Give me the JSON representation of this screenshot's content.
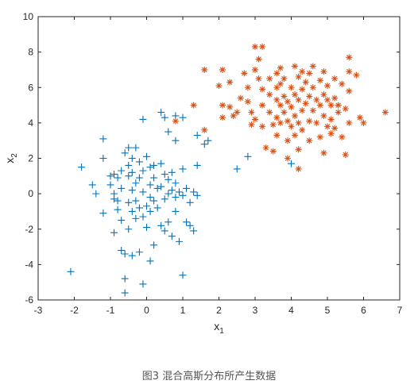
{
  "caption": "图3 混合高斯分布所产生数据",
  "colors": {
    "series1": "#0072BD",
    "series2": "#D95319",
    "axis": "#262626"
  },
  "chart_data": {
    "type": "scatter",
    "title": "",
    "xlabel": {
      "base": "x",
      "sub": "1"
    },
    "ylabel": {
      "base": "x",
      "sub": "2"
    },
    "xlim": [
      -3,
      7
    ],
    "ylim": [
      -6,
      10
    ],
    "xticks": [
      -3,
      -2,
      -1,
      0,
      1,
      2,
      3,
      4,
      5,
      6,
      7
    ],
    "yticks": [
      -6,
      -4,
      -2,
      0,
      2,
      4,
      6,
      8,
      10
    ],
    "grid": false,
    "box": true,
    "series": [
      {
        "marker": "plus",
        "color": "#0072BD",
        "points": [
          [
            -2.1,
            -4.4
          ],
          [
            -1.8,
            1.5
          ],
          [
            -1.5,
            0.5
          ],
          [
            -1.4,
            0.0
          ],
          [
            -1.2,
            3.1
          ],
          [
            -1.2,
            2.0
          ],
          [
            -1.2,
            -1.1
          ],
          [
            -1.0,
            1.0
          ],
          [
            -1.0,
            0.5
          ],
          [
            -0.9,
            1.1
          ],
          [
            -0.9,
            0.0
          ],
          [
            -0.9,
            -0.3
          ],
          [
            -0.9,
            -2.2
          ],
          [
            -0.8,
            -0.4
          ],
          [
            -0.8,
            0.9
          ],
          [
            -0.8,
            -0.9
          ],
          [
            -0.7,
            1.3
          ],
          [
            -0.7,
            0.3
          ],
          [
            -0.7,
            -1.5
          ],
          [
            -0.7,
            -3.2
          ],
          [
            -0.6,
            -5.6
          ],
          [
            -0.6,
            -4.8
          ],
          [
            -0.6,
            -3.4
          ],
          [
            -0.6,
            2.3
          ],
          [
            -0.5,
            2.6
          ],
          [
            -0.5,
            1.6
          ],
          [
            -0.5,
            1.0
          ],
          [
            -0.5,
            -0.5
          ],
          [
            -0.5,
            -2.0
          ],
          [
            -0.4,
            2.0
          ],
          [
            -0.4,
            1.2
          ],
          [
            -0.4,
            0.2
          ],
          [
            -0.4,
            -1.0
          ],
          [
            -0.4,
            -3.5
          ],
          [
            -0.3,
            2.6
          ],
          [
            -0.3,
            0.6
          ],
          [
            -0.3,
            -0.4
          ],
          [
            -0.3,
            -1.4
          ],
          [
            -0.2,
            1.8
          ],
          [
            -0.2,
            0.9
          ],
          [
            -0.2,
            -0.8
          ],
          [
            -0.2,
            -3.3
          ],
          [
            -0.1,
            4.2
          ],
          [
            -0.1,
            1.3
          ],
          [
            -0.1,
            0.1
          ],
          [
            -0.1,
            -1.3
          ],
          [
            -0.1,
            -5.1
          ],
          [
            0.0,
            2.1
          ],
          [
            0.0,
            -0.7
          ],
          [
            0.0,
            -1.9
          ],
          [
            0.1,
            1.5
          ],
          [
            0.1,
            0.5
          ],
          [
            0.1,
            -0.2
          ],
          [
            0.1,
            -1.0
          ],
          [
            0.1,
            -3.8
          ],
          [
            0.2,
            1.6
          ],
          [
            0.2,
            0.9
          ],
          [
            0.2,
            -0.4
          ],
          [
            0.2,
            -2.9
          ],
          [
            0.3,
            0.3
          ],
          [
            0.3,
            -0.8
          ],
          [
            0.4,
            4.6
          ],
          [
            0.4,
            1.7
          ],
          [
            0.4,
            0.4
          ],
          [
            0.4,
            -1.8
          ],
          [
            0.5,
            4.3
          ],
          [
            0.5,
            1.1
          ],
          [
            0.5,
            -0.3
          ],
          [
            0.5,
            -2.1
          ],
          [
            0.6,
            3.5
          ],
          [
            0.6,
            0.8
          ],
          [
            0.6,
            0.0
          ],
          [
            0.6,
            -1.6
          ],
          [
            0.7,
            1.2
          ],
          [
            0.7,
            0.2
          ],
          [
            0.7,
            -2.4
          ],
          [
            0.8,
            4.4
          ],
          [
            0.8,
            3.0
          ],
          [
            0.8,
            0.6
          ],
          [
            0.8,
            -0.2
          ],
          [
            0.8,
            -1.0
          ],
          [
            0.9,
            0.1
          ],
          [
            0.9,
            -2.7
          ],
          [
            1.0,
            4.3
          ],
          [
            1.0,
            1.4
          ],
          [
            1.0,
            -0.1
          ],
          [
            1.0,
            -4.6
          ],
          [
            1.1,
            0.3
          ],
          [
            1.1,
            -1.6
          ],
          [
            1.2,
            -0.5
          ],
          [
            1.2,
            -1.8
          ],
          [
            1.3,
            0.1
          ],
          [
            1.3,
            -2.1
          ],
          [
            1.4,
            3.3
          ],
          [
            1.4,
            1.6
          ],
          [
            1.4,
            -0.1
          ],
          [
            1.6,
            2.8
          ],
          [
            1.7,
            3.0
          ],
          [
            2.5,
            1.4
          ],
          [
            2.8,
            2.1
          ],
          [
            4.0,
            1.7
          ]
        ]
      },
      {
        "marker": "asterisk",
        "color": "#D95319",
        "points": [
          [
            0.8,
            4.1
          ],
          [
            1.3,
            5.0
          ],
          [
            1.6,
            3.6
          ],
          [
            1.6,
            7.0
          ],
          [
            2.0,
            6.1
          ],
          [
            2.1,
            7.0
          ],
          [
            2.1,
            5.0
          ],
          [
            2.1,
            4.3
          ],
          [
            2.3,
            4.9
          ],
          [
            2.3,
            6.3
          ],
          [
            2.4,
            4.4
          ],
          [
            2.5,
            4.6
          ],
          [
            2.6,
            5.4
          ],
          [
            2.7,
            6.8
          ],
          [
            2.8,
            6.0
          ],
          [
            2.8,
            5.2
          ],
          [
            2.9,
            3.9
          ],
          [
            2.9,
            4.6
          ],
          [
            3.0,
            8.3
          ],
          [
            3.0,
            7.0
          ],
          [
            3.0,
            4.2
          ],
          [
            3.1,
            7.6
          ],
          [
            3.1,
            6.5
          ],
          [
            3.2,
            8.3
          ],
          [
            3.2,
            5.9
          ],
          [
            3.2,
            5.0
          ],
          [
            3.2,
            3.8
          ],
          [
            3.3,
            2.6
          ],
          [
            3.4,
            6.5
          ],
          [
            3.4,
            5.6
          ],
          [
            3.4,
            4.6
          ],
          [
            3.5,
            3.9
          ],
          [
            3.5,
            2.4
          ],
          [
            3.6,
            6.8
          ],
          [
            3.6,
            6.0
          ],
          [
            3.6,
            5.3
          ],
          [
            3.6,
            4.3
          ],
          [
            3.6,
            3.3
          ],
          [
            3.7,
            7.1
          ],
          [
            3.7,
            6.2
          ],
          [
            3.7,
            5.0
          ],
          [
            3.7,
            4.0
          ],
          [
            3.8,
            6.5
          ],
          [
            3.8,
            5.5
          ],
          [
            3.8,
            4.6
          ],
          [
            3.9,
            5.2
          ],
          [
            3.9,
            4.1
          ],
          [
            3.9,
            3.0
          ],
          [
            3.9,
            2.0
          ],
          [
            4.0,
            6.0
          ],
          [
            4.0,
            4.9
          ],
          [
            4.0,
            3.8
          ],
          [
            4.1,
            7.2
          ],
          [
            4.1,
            5.6
          ],
          [
            4.1,
            4.4
          ],
          [
            4.1,
            3.3
          ],
          [
            4.2,
            6.6
          ],
          [
            4.2,
            5.3
          ],
          [
            4.2,
            4.0
          ],
          [
            4.2,
            2.5
          ],
          [
            4.2,
            1.4
          ],
          [
            4.3,
            6.9
          ],
          [
            4.3,
            5.9
          ],
          [
            4.3,
            4.7
          ],
          [
            4.3,
            3.6
          ],
          [
            4.4,
            6.3
          ],
          [
            4.4,
            5.1
          ],
          [
            4.5,
            6.8
          ],
          [
            4.5,
            5.5
          ],
          [
            4.5,
            4.1
          ],
          [
            4.5,
            3.0
          ],
          [
            4.6,
            7.2
          ],
          [
            4.6,
            6.0
          ],
          [
            4.6,
            4.7
          ],
          [
            4.7,
            5.3
          ],
          [
            4.7,
            4.0
          ],
          [
            4.8,
            6.4
          ],
          [
            4.8,
            5.0
          ],
          [
            4.8,
            3.2
          ],
          [
            4.9,
            6.9
          ],
          [
            4.9,
            5.6
          ],
          [
            4.9,
            4.4
          ],
          [
            4.9,
            2.3
          ],
          [
            5.0,
            6.1
          ],
          [
            5.0,
            5.3
          ],
          [
            5.0,
            3.8
          ],
          [
            5.1,
            5.0
          ],
          [
            5.1,
            4.2
          ],
          [
            5.1,
            3.4
          ],
          [
            5.2,
            6.5
          ],
          [
            5.2,
            5.4
          ],
          [
            5.2,
            3.7
          ],
          [
            5.3,
            4.6
          ],
          [
            5.3,
            5.0
          ],
          [
            5.4,
            6.2
          ],
          [
            5.4,
            3.2
          ],
          [
            5.5,
            4.8
          ],
          [
            5.5,
            2.2
          ],
          [
            5.6,
            7.7
          ],
          [
            5.6,
            5.8
          ],
          [
            5.6,
            4.0
          ],
          [
            5.6,
            6.9
          ],
          [
            5.8,
            6.7
          ],
          [
            5.9,
            4.3
          ],
          [
            6.0,
            4.0
          ],
          [
            6.6,
            4.6
          ]
        ]
      }
    ]
  }
}
